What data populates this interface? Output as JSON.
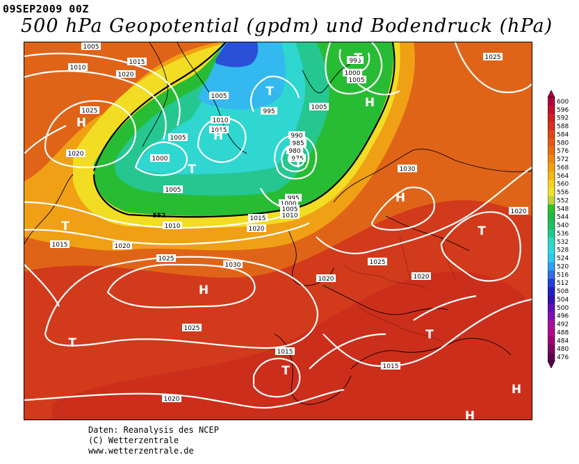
{
  "header": {
    "date": "09SEP2009 00Z",
    "title": "500 hPa Geopotential (gpdm) und Bodendruck (hPa)"
  },
  "legend": {
    "levels": [
      "600",
      "596",
      "592",
      "588",
      "584",
      "580",
      "576",
      "572",
      "568",
      "564",
      "560",
      "556",
      "552",
      "548",
      "544",
      "540",
      "536",
      "532",
      "528",
      "524",
      "520",
      "516",
      "512",
      "508",
      "504",
      "500",
      "496",
      "492",
      "488",
      "484",
      "480",
      "476"
    ],
    "colors": [
      "#b0003a",
      "#c4102a",
      "#d02020",
      "#d83020",
      "#dc4818",
      "#e05a14",
      "#e67010",
      "#ec8a10",
      "#f0a010",
      "#f0b818",
      "#f4d020",
      "#f0e030",
      "#c0d040",
      "#30c030",
      "#20b848",
      "#20c060",
      "#20c890",
      "#30d8c0",
      "#30d8e0",
      "#30c8f0",
      "#30a0f0",
      "#3070e0",
      "#2040d8",
      "#2020c0",
      "#3010b0",
      "#6010b0",
      "#8010b0",
      "#a010a0",
      "#b00890",
      "#a00070",
      "#800060",
      "#600050"
    ],
    "ticks": [
      "600",
      "596",
      "592",
      "588",
      "584",
      "580",
      "576",
      "572",
      "568",
      "564",
      "560",
      "556",
      "552",
      "548",
      "544",
      "540",
      "536",
      "532",
      "528",
      "524",
      "520",
      "516",
      "512",
      "508",
      "504",
      "500",
      "496",
      "492",
      "488",
      "484",
      "480",
      "476"
    ]
  },
  "map": {
    "pressure_labels": [
      {
        "text": "1005",
        "cls": "p"
      },
      {
        "text": "1010",
        "cls": "p"
      },
      {
        "text": "1015",
        "cls": "p"
      },
      {
        "text": "1020",
        "cls": "p"
      },
      {
        "text": "1025",
        "cls": "p"
      },
      {
        "text": "1020",
        "cls": "p"
      },
      {
        "text": "1000",
        "cls": "p"
      },
      {
        "text": "1005",
        "cls": "p"
      },
      {
        "text": "1005",
        "cls": "p"
      },
      {
        "text": "1010",
        "cls": "p"
      },
      {
        "text": "1015",
        "cls": "p"
      },
      {
        "text": "1005",
        "cls": "p"
      },
      {
        "text": "995",
        "cls": "p"
      },
      {
        "text": "1005",
        "cls": "p"
      },
      {
        "text": "990",
        "cls": "p"
      },
      {
        "text": "985",
        "cls": "p"
      },
      {
        "text": "980",
        "cls": "p"
      },
      {
        "text": "975",
        "cls": "p"
      },
      {
        "text": "995",
        "cls": "p"
      },
      {
        "text": "1000",
        "cls": "p"
      },
      {
        "text": "1005",
        "cls": "p"
      },
      {
        "text": "1010",
        "cls": "p"
      },
      {
        "text": "1005",
        "cls": "p"
      },
      {
        "text": "1010",
        "cls": "p"
      },
      {
        "text": "1015",
        "cls": "p"
      },
      {
        "text": "1020",
        "cls": "p"
      },
      {
        "text": "1015",
        "cls": "p"
      },
      {
        "text": "1020",
        "cls": "p"
      },
      {
        "text": "1025",
        "cls": "p"
      },
      {
        "text": "1030",
        "cls": "p"
      },
      {
        "text": "1020",
        "cls": "p"
      },
      {
        "text": "1030",
        "cls": "p"
      },
      {
        "text": "1020",
        "cls": "p"
      },
      {
        "text": "1025",
        "cls": "p"
      },
      {
        "text": "1020",
        "cls": "p"
      },
      {
        "text": "1025",
        "cls": "p"
      },
      {
        "text": "1015",
        "cls": "p"
      },
      {
        "text": "1015",
        "cls": "p"
      },
      {
        "text": "1020",
        "cls": "p"
      },
      {
        "text": "995",
        "cls": "p"
      },
      {
        "text": "1000",
        "cls": "p"
      },
      {
        "text": "1005",
        "cls": "p"
      },
      {
        "text": "1025",
        "cls": "p"
      },
      {
        "text": "552",
        "cls": "g"
      }
    ],
    "systems": [
      "H",
      "H",
      "H",
      "H",
      "H",
      "H",
      "H",
      "H",
      "T",
      "T",
      "T",
      "T",
      "T",
      "T",
      "T",
      "T",
      "T"
    ]
  },
  "credits": {
    "line1": "Daten: Reanalysis des NCEP",
    "line2": "(C) Wetterzentrale",
    "line3": "www.wetterzentrale.de"
  }
}
